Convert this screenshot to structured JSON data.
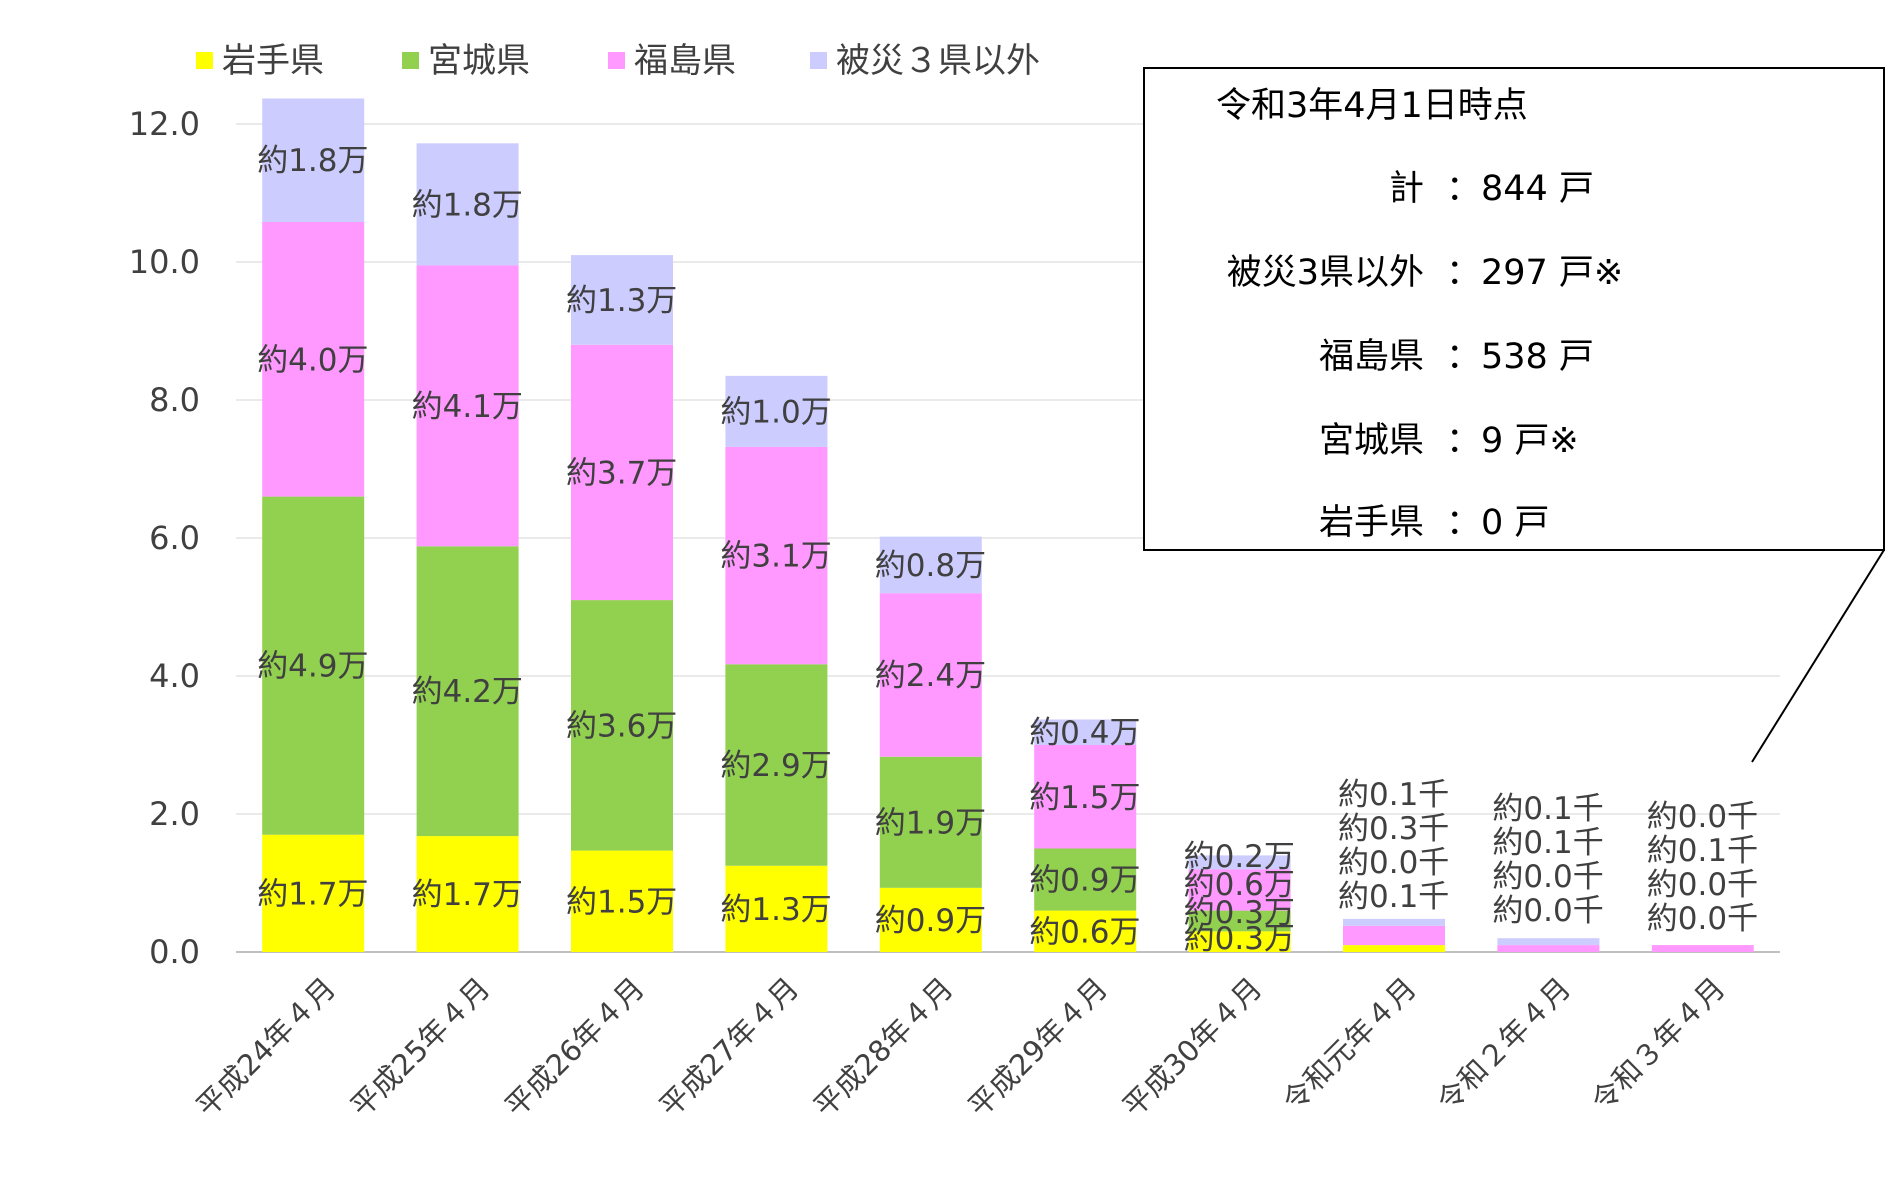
{
  "chart_data": {
    "type": "bar",
    "stacked": true,
    "title": "",
    "xlabel": "",
    "ylabel": "",
    "ylim": [
      0,
      12
    ],
    "yticks": [
      "0.0",
      "2.0",
      "4.0",
      "6.0",
      "8.0",
      "10.0",
      "12.0"
    ],
    "gridlines": true,
    "legend_position": "top-left",
    "categories": [
      "平成24年４月",
      "平成25年４月",
      "平成26年４月",
      "平成27年４月",
      "平成28年４月",
      "平成29年４月",
      "平成30年４月",
      "令和元年４月",
      "令和２年４月",
      "令和３年４月"
    ],
    "series": [
      {
        "name": "岩手県",
        "color": "#FFFF00",
        "values": [
          1.7,
          1.68,
          1.47,
          1.25,
          0.93,
          0.6,
          0.3,
          0.1,
          0.0,
          0.0
        ],
        "labels": [
          "約1.7万",
          "約1.7万",
          "約1.5万",
          "約1.3万",
          "約0.9万",
          "約0.6万",
          "約0.3万",
          "約0.1千",
          "約0.0千",
          "約0.0千"
        ]
      },
      {
        "name": "宮城県",
        "color": "#92D050",
        "values": [
          4.9,
          4.2,
          3.63,
          2.92,
          1.9,
          0.9,
          0.3,
          0.0,
          0.0,
          0.0
        ],
        "labels": [
          "約4.9万",
          "約4.2万",
          "約3.6万",
          "約2.9万",
          "約1.9万",
          "約0.9万",
          "約0.3万",
          "約0.0千",
          "約0.0千",
          "約0.0千"
        ]
      },
      {
        "name": "福島県",
        "color": "#FF99FF",
        "values": [
          3.98,
          4.07,
          3.7,
          3.15,
          2.37,
          1.5,
          0.6,
          0.28,
          0.1,
          0.1
        ],
        "labels": [
          "約4.0万",
          "約4.1万",
          "約3.7万",
          "約3.1万",
          "約2.4万",
          "約1.5万",
          "約0.6万",
          "約0.3千",
          "約0.1千",
          "約0.1千"
        ]
      },
      {
        "name": "被災３県以外",
        "color": "#CCCCFF",
        "values": [
          1.79,
          1.77,
          1.3,
          1.03,
          0.82,
          0.37,
          0.2,
          0.1,
          0.1,
          0.0
        ],
        "labels": [
          "約1.8万",
          "約1.8万",
          "約1.3万",
          "約1.0万",
          "約0.8万",
          "約0.4万",
          "約0.2万",
          "約0.1千",
          "約0.1千",
          "約0.0千"
        ]
      }
    ]
  },
  "callout": {
    "title": "令和3年4月1日時点",
    "rows": [
      {
        "label": "計",
        "value": "：844 戸"
      },
      {
        "label": "被災3県以外",
        "value": "：297 戸※"
      },
      {
        "label": "福島県",
        "value": "：538 戸"
      },
      {
        "label": "宮城県",
        "value": "：9 戸※"
      },
      {
        "label": "岩手県",
        "value": "：0 戸"
      }
    ]
  }
}
